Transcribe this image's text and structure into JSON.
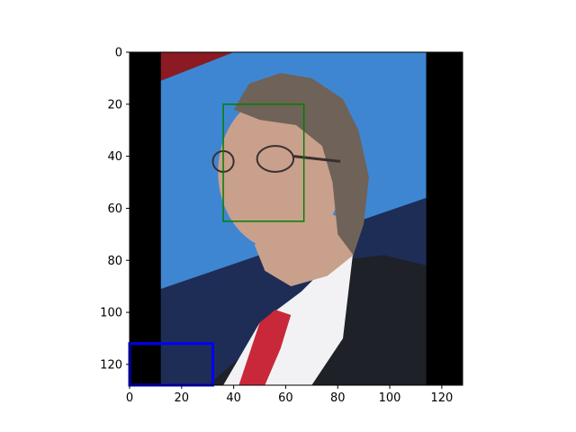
{
  "chart_data": {
    "type": "image",
    "title": "",
    "xlabel": "",
    "ylabel": "",
    "xlim": [
      0,
      128
    ],
    "ylim": [
      128,
      0
    ],
    "x_ticks": [
      0,
      20,
      40,
      60,
      80,
      100,
      120
    ],
    "y_ticks": [
      0,
      20,
      40,
      60,
      80,
      100,
      120
    ],
    "x_tick_labels": [
      "0",
      "20",
      "40",
      "60",
      "80",
      "100",
      "120"
    ],
    "y_tick_labels": [
      "0",
      "20",
      "40",
      "60",
      "80",
      "100",
      "120"
    ],
    "image_description": "pixelated photo of a grey-haired man in glasses, dark suit, white shirt and red tie against a blue banner; black bars at left and right",
    "boxes": [
      {
        "label": "",
        "color": "#008000",
        "x0": 36,
        "y0": 20,
        "x1": 67,
        "y1": 65
      },
      {
        "label": "",
        "color": "#0000ff",
        "x0": 0,
        "y0": 112,
        "x1": 32,
        "y1": 128
      }
    ],
    "colors": {
      "black_bar": "#000000",
      "sky_banner": "#3f86d2",
      "banner_dark": "#1e2d55",
      "red_top": "#8b1a22",
      "suit": "#1f2128",
      "shirt": "#f2f2f4",
      "tie": "#c8283a",
      "skin": "#c9a08c",
      "hair": "#6f6258"
    }
  }
}
